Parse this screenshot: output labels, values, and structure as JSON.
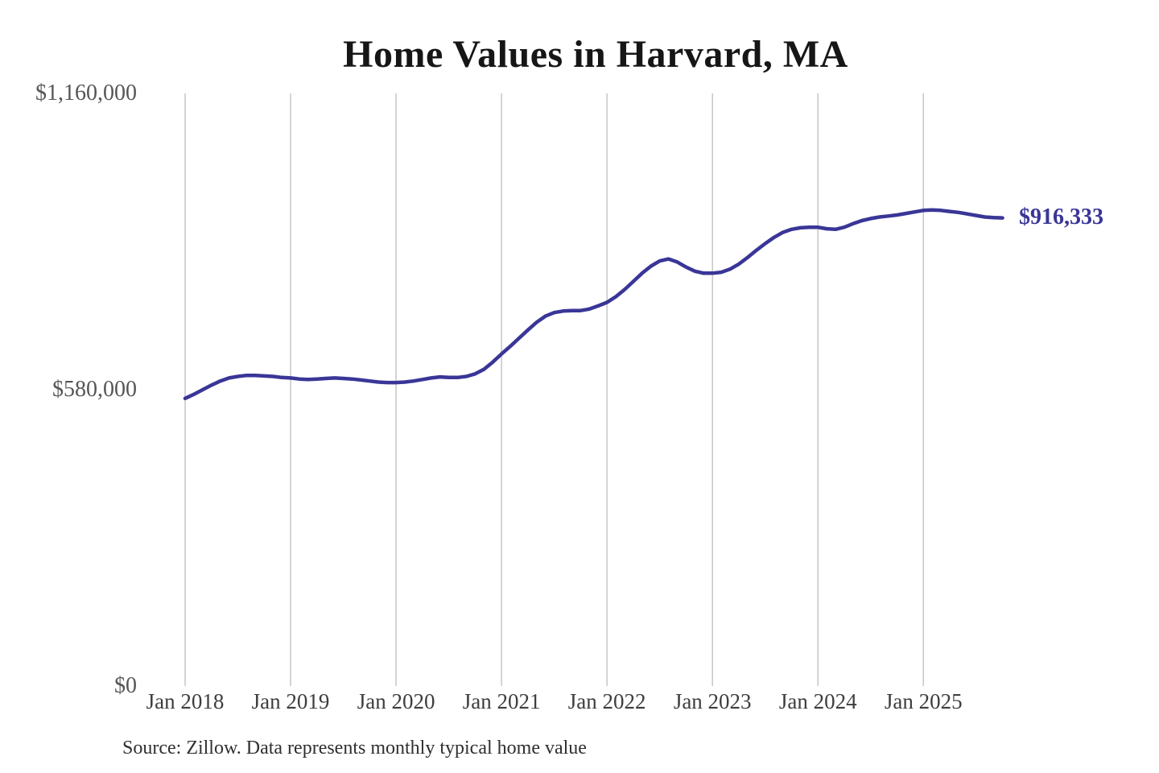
{
  "page": {
    "background": "#ffffff"
  },
  "header": {
    "title": "Home Values in Harvard, MA"
  },
  "footer": {
    "source_note": "Source: Zillow. Data represents monthly typical home value"
  },
  "colors": {
    "line": "#3a3697",
    "grid": "#c6c6c6",
    "title_text": "#161616",
    "y_tick_text": "#565656",
    "x_tick_text": "#3e3e3e",
    "source_text": "#2f2f2f",
    "latest_label_text": "#3a3697",
    "background": "#ffffff"
  },
  "chart_data": {
    "type": "line",
    "title": "Home Values in Harvard, MA",
    "xlabel": "",
    "ylabel": "",
    "ylim": [
      0,
      1160000
    ],
    "grid": "vertical-only",
    "legend_position": "none",
    "x_unit": "month",
    "x_range": [
      "Jan 2018",
      "Oct 2025"
    ],
    "x_ticks": [
      {
        "label": "Jan 2018",
        "month_index": 0
      },
      {
        "label": "Jan 2019",
        "month_index": 12
      },
      {
        "label": "Jan 2020",
        "month_index": 24
      },
      {
        "label": "Jan 2021",
        "month_index": 36
      },
      {
        "label": "Jan 2022",
        "month_index": 48
      },
      {
        "label": "Jan 2023",
        "month_index": 60
      },
      {
        "label": "Jan 2024",
        "month_index": 72
      },
      {
        "label": "Jan 2025",
        "month_index": 84
      }
    ],
    "y_ticks": [
      {
        "label": "$0",
        "value": 0
      },
      {
        "label": "$580,000",
        "value": 580000
      },
      {
        "label": "$1,160,000",
        "value": 1160000
      }
    ],
    "latest_value": 916333,
    "latest_value_label": "$916,333",
    "series": [
      {
        "name": "Monthly typical home value",
        "start": "2018-01",
        "frequency": "monthly",
        "values": [
          563000,
          571000,
          580000,
          589000,
          597000,
          603000,
          606000,
          608000,
          608000,
          607000,
          606000,
          604000,
          603000,
          601000,
          600000,
          601000,
          602000,
          603000,
          602000,
          601000,
          599000,
          597000,
          595000,
          594000,
          594000,
          595000,
          597000,
          600000,
          603000,
          605000,
          604000,
          604000,
          606000,
          611000,
          620000,
          634000,
          650000,
          665000,
          681000,
          697000,
          712000,
          724000,
          731000,
          734000,
          735000,
          735000,
          738000,
          744000,
          751000,
          762000,
          776000,
          792000,
          808000,
          822000,
          832000,
          836000,
          830000,
          820000,
          812000,
          808000,
          808000,
          810000,
          816000,
          826000,
          839000,
          853000,
          866000,
          878000,
          888000,
          894000,
          897000,
          898000,
          898000,
          895000,
          894000,
          898000,
          905000,
          911000,
          915000,
          918000,
          920000,
          922000,
          925000,
          928000,
          931000,
          932000,
          931000,
          929000,
          927000,
          924000,
          921000,
          918000,
          917000,
          916333
        ]
      }
    ]
  }
}
